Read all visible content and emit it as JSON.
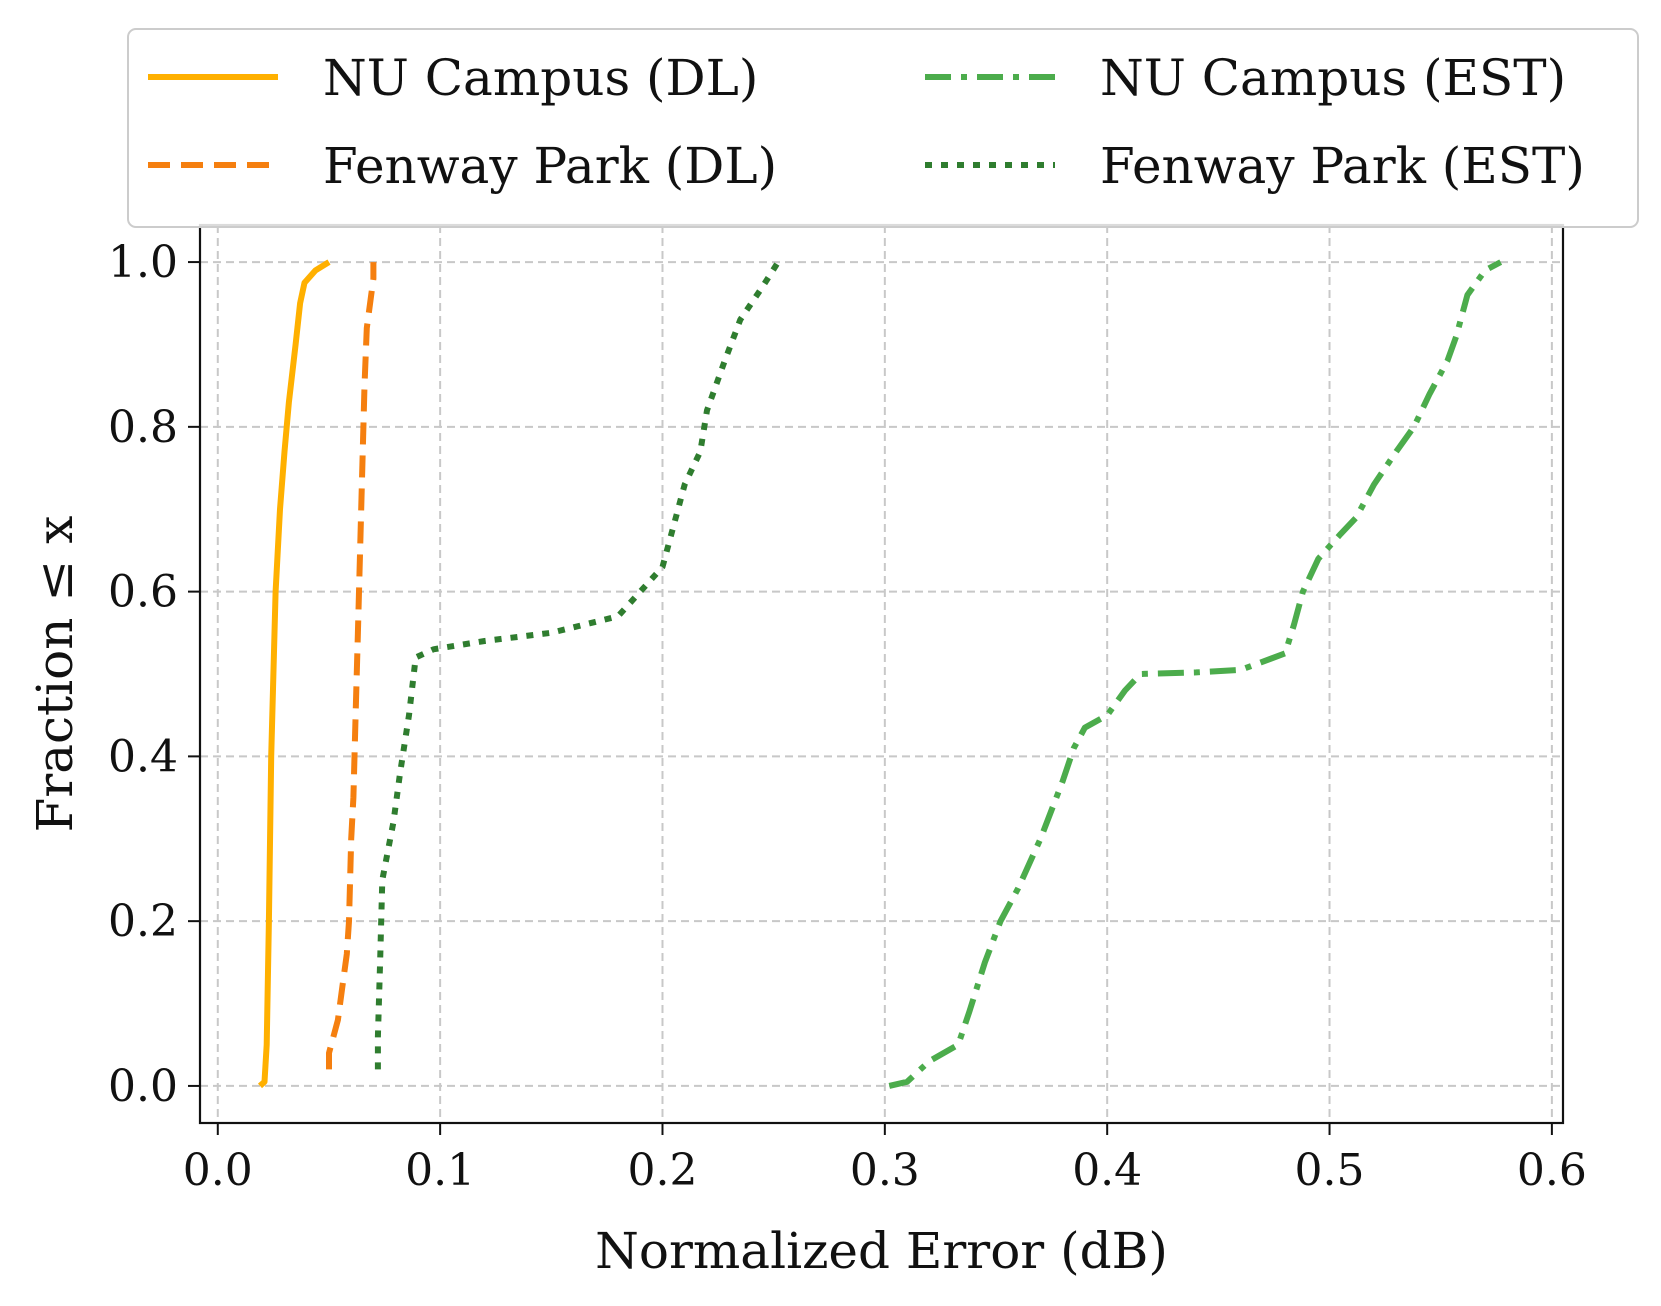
{
  "chart_data": {
    "type": "line",
    "title": "",
    "xlabel": "Normalized Error (dB)",
    "ylabel": "Fraction ≤ x",
    "xlim": [
      -0.008,
      0.605
    ],
    "ylim": [
      -0.045,
      1.045
    ],
    "grid": true,
    "legend_position": "top, above plot",
    "x_ticks": [
      0.0,
      0.1,
      0.2,
      0.3,
      0.4,
      0.5,
      0.6
    ],
    "x_tick_labels": [
      "0.0",
      "0.1",
      "0.2",
      "0.3",
      "0.4",
      "0.5",
      "0.6"
    ],
    "y_ticks": [
      0.0,
      0.2,
      0.4,
      0.6,
      0.8,
      1.0
    ],
    "y_tick_labels": [
      "0.0",
      "0.2",
      "0.4",
      "0.6",
      "0.8",
      "1.0"
    ],
    "series": [
      {
        "name": "NU Campus (DL)",
        "color": "#FFB000",
        "style": "solid",
        "points": [
          [
            0.019,
            0.0
          ],
          [
            0.021,
            0.005
          ],
          [
            0.022,
            0.05
          ],
          [
            0.023,
            0.2
          ],
          [
            0.024,
            0.4
          ],
          [
            0.025,
            0.5
          ],
          [
            0.026,
            0.6
          ],
          [
            0.027,
            0.65
          ],
          [
            0.028,
            0.7
          ],
          [
            0.03,
            0.77
          ],
          [
            0.032,
            0.83
          ],
          [
            0.035,
            0.9
          ],
          [
            0.037,
            0.95
          ],
          [
            0.039,
            0.975
          ],
          [
            0.044,
            0.99
          ],
          [
            0.05,
            1.0
          ]
        ]
      },
      {
        "name": "Fenway Park (DL)",
        "color": "#F57F0F",
        "style": "dashed",
        "points": [
          [
            0.05,
            0.02
          ],
          [
            0.05,
            0.04
          ],
          [
            0.054,
            0.08
          ],
          [
            0.056,
            0.12
          ],
          [
            0.058,
            0.16
          ],
          [
            0.059,
            0.2
          ],
          [
            0.06,
            0.3
          ],
          [
            0.061,
            0.35
          ],
          [
            0.062,
            0.45
          ],
          [
            0.063,
            0.55
          ],
          [
            0.064,
            0.65
          ],
          [
            0.065,
            0.75
          ],
          [
            0.066,
            0.85
          ],
          [
            0.067,
            0.92
          ],
          [
            0.069,
            0.96
          ],
          [
            0.07,
            0.98
          ],
          [
            0.07,
            1.0
          ]
        ]
      },
      {
        "name": "NU Campus (EST)",
        "color": "#4CAC4C",
        "style": "dashdot",
        "points": [
          [
            0.302,
            0.0
          ],
          [
            0.31,
            0.005
          ],
          [
            0.32,
            0.03
          ],
          [
            0.333,
            0.05
          ],
          [
            0.338,
            0.09
          ],
          [
            0.345,
            0.15
          ],
          [
            0.352,
            0.2
          ],
          [
            0.36,
            0.24
          ],
          [
            0.37,
            0.3
          ],
          [
            0.38,
            0.37
          ],
          [
            0.385,
            0.41
          ],
          [
            0.39,
            0.435
          ],
          [
            0.4,
            0.45
          ],
          [
            0.408,
            0.48
          ],
          [
            0.415,
            0.5
          ],
          [
            0.44,
            0.502
          ],
          [
            0.46,
            0.505
          ],
          [
            0.48,
            0.525
          ],
          [
            0.484,
            0.56
          ],
          [
            0.488,
            0.6
          ],
          [
            0.495,
            0.64
          ],
          [
            0.505,
            0.67
          ],
          [
            0.512,
            0.69
          ],
          [
            0.52,
            0.73
          ],
          [
            0.53,
            0.77
          ],
          [
            0.538,
            0.8
          ],
          [
            0.545,
            0.84
          ],
          [
            0.553,
            0.88
          ],
          [
            0.557,
            0.91
          ],
          [
            0.562,
            0.96
          ],
          [
            0.57,
            0.99
          ],
          [
            0.577,
            1.0
          ]
        ]
      },
      {
        "name": "Fenway Park (EST)",
        "color": "#2F7D2F",
        "style": "dotted",
        "points": [
          [
            0.072,
            0.02
          ],
          [
            0.072,
            0.06
          ],
          [
            0.073,
            0.15
          ],
          [
            0.074,
            0.25
          ],
          [
            0.079,
            0.32
          ],
          [
            0.082,
            0.38
          ],
          [
            0.086,
            0.45
          ],
          [
            0.089,
            0.52
          ],
          [
            0.097,
            0.53
          ],
          [
            0.12,
            0.54
          ],
          [
            0.15,
            0.55
          ],
          [
            0.18,
            0.57
          ],
          [
            0.19,
            0.6
          ],
          [
            0.2,
            0.63
          ],
          [
            0.205,
            0.68
          ],
          [
            0.21,
            0.73
          ],
          [
            0.217,
            0.77
          ],
          [
            0.22,
            0.82
          ],
          [
            0.228,
            0.88
          ],
          [
            0.235,
            0.93
          ],
          [
            0.245,
            0.97
          ],
          [
            0.252,
            1.0
          ]
        ]
      }
    ]
  }
}
